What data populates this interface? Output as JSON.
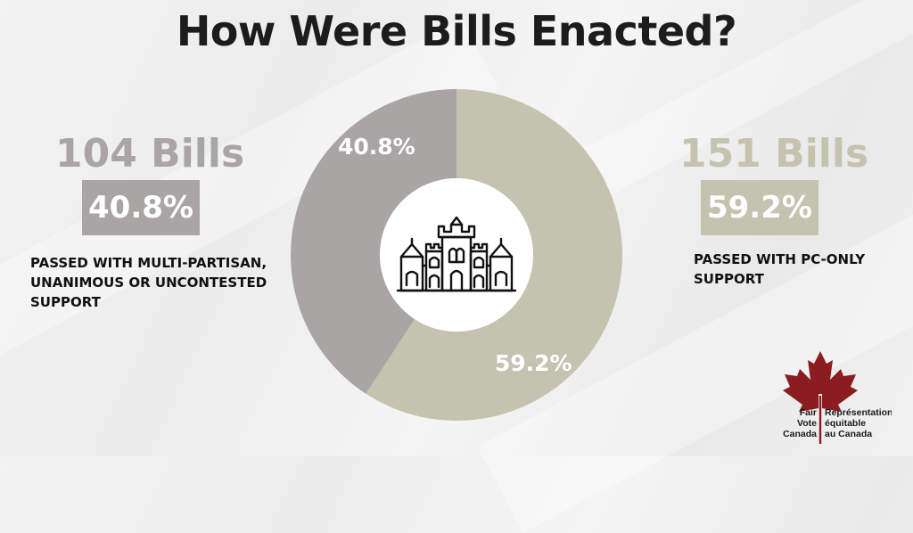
{
  "title": "How Were Bills Enacted?",
  "left": {
    "count": "104 Bills",
    "percent": "40.8%",
    "description": "PASSED WITH MULTI-PARTISAN,\nUNANIMOUS OR UNCONTESTED\nSUPPORT",
    "color": "#a9a5a4"
  },
  "right": {
    "count": "151 Bills",
    "percent": "59.2%",
    "description": "PASSED WITH PC-ONLY\nSUPPORT",
    "color": "#c4c3b0"
  },
  "chart_data": {
    "type": "pie",
    "donut": true,
    "slices": [
      {
        "label": "PASSED WITH PC-ONLY SUPPORT",
        "value": 59.2,
        "data_label": "59.2%",
        "color": "#c4c3b0"
      },
      {
        "label": "PASSED WITH MULTI-PARTISAN, UNANIMOUS OR UNCONTESTED SUPPORT",
        "value": 40.8,
        "data_label": "40.8%",
        "color": "#a9a5a4"
      }
    ],
    "center_icon": "parliament-building-icon"
  },
  "logo": {
    "icon": "maple-leaf-icon",
    "en_lines": [
      "Fair",
      "Vote",
      "Canada"
    ],
    "fr_lines": [
      "Représentation",
      "équitable",
      "au Canada"
    ],
    "color": "#8b1c20"
  }
}
